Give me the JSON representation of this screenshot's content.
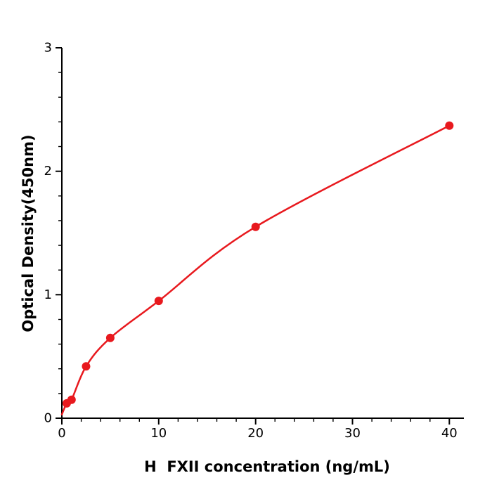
{
  "chart_data": {
    "type": "scatter",
    "x": [
      0.5,
      1,
      2.5,
      5,
      10,
      20,
      40
    ],
    "y": [
      0.12,
      0.15,
      0.42,
      0.65,
      0.95,
      1.55,
      2.37
    ],
    "curve_start": {
      "x": 0,
      "y": 0.03
    },
    "title": "",
    "xlabel": "H  FXII concentration (ng/mL)",
    "ylabel": "Optical Density(450nm)",
    "xlim": [
      0,
      41.5
    ],
    "ylim": [
      0,
      3
    ],
    "xticks": [
      0,
      10,
      20,
      30,
      40
    ],
    "yticks": [
      0,
      1,
      2,
      3
    ],
    "x_minor_step": 2,
    "y_minor_step": 0.2,
    "grid": false,
    "legend": "none",
    "line_color": "#e8191e",
    "marker_color": "#e8191e",
    "axis_color": "#000000",
    "background": "#ffffff"
  }
}
